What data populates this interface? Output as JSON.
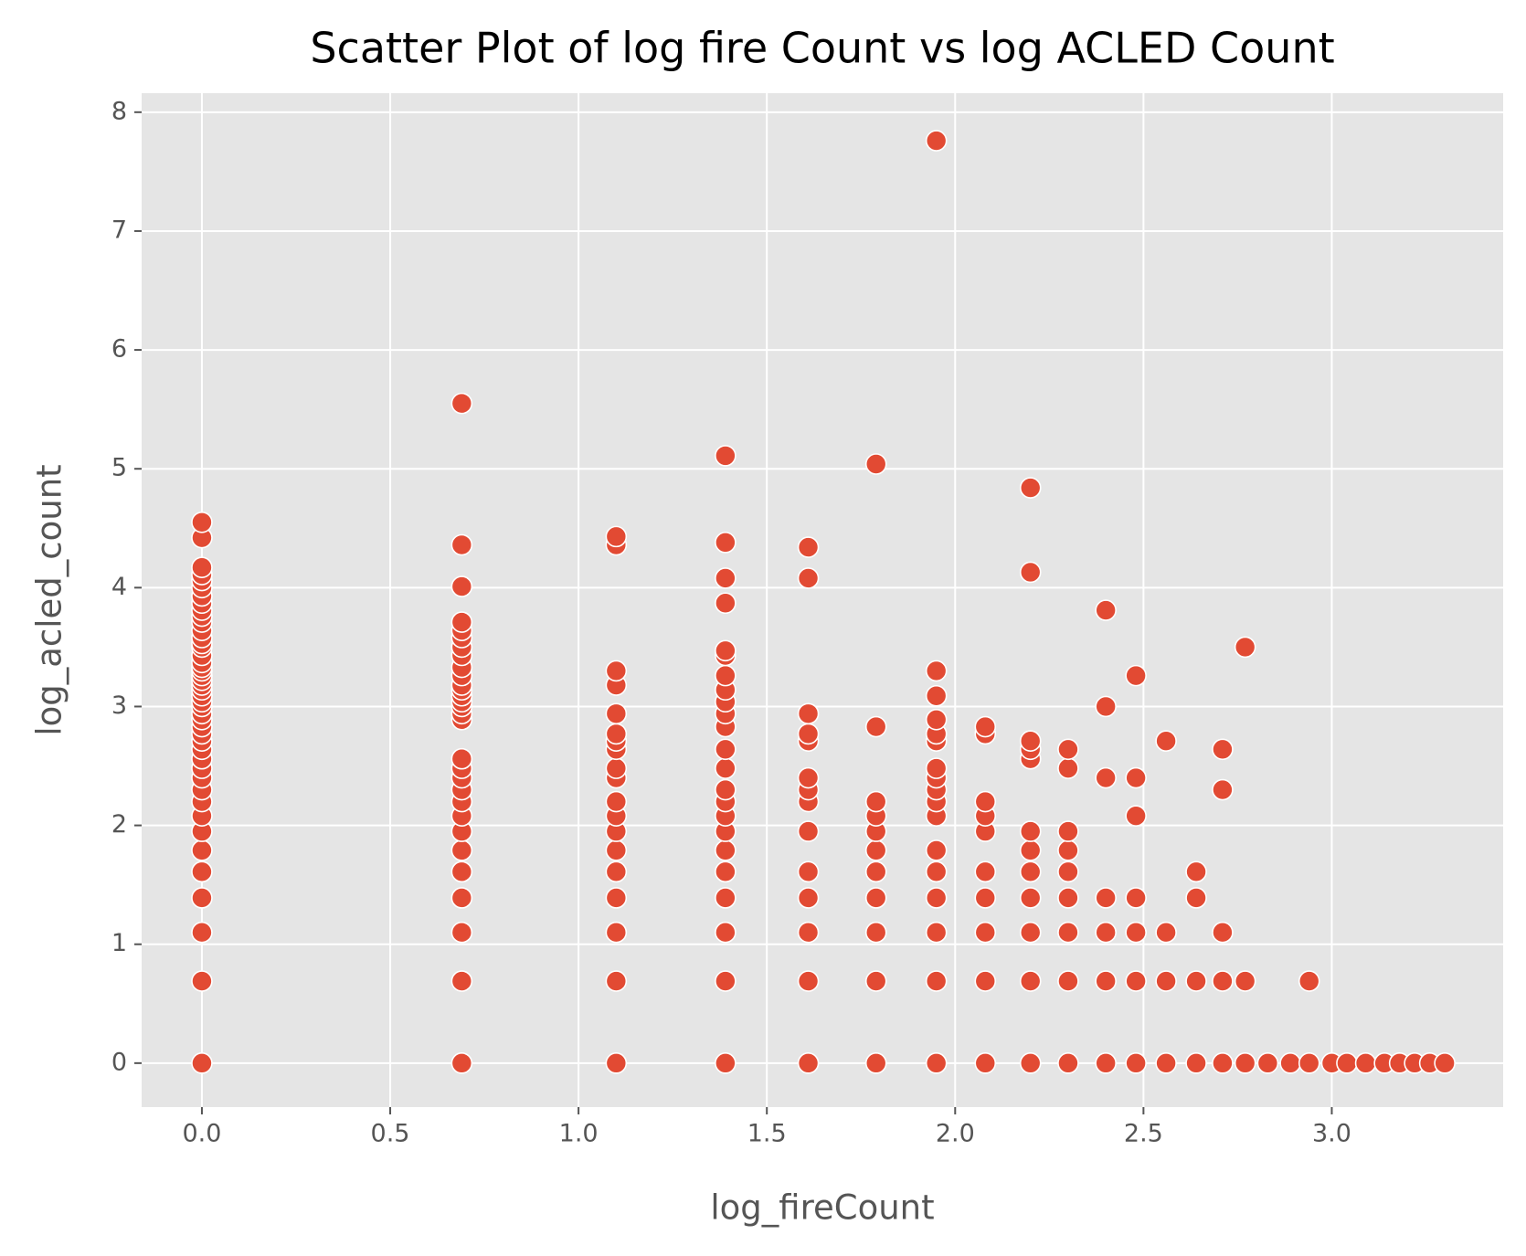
{
  "chart_data": {
    "type": "scatter",
    "title": "Scatter Plot of log fire Count vs log ACLED Count",
    "x_label": "log_fireCount",
    "y_label": "log_acled_count",
    "xlim": [
      -0.16,
      3.455
    ],
    "ylim": [
      -0.37,
      8.16
    ],
    "xticks": [
      {
        "value": 0,
        "label": "0.0"
      },
      0.5,
      {
        "value": 1,
        "label": "1.0"
      },
      1.5,
      {
        "value": 2,
        "label": "2.0"
      },
      2.5,
      {
        "value": 3,
        "label": "3.0"
      }
    ],
    "yticks": [
      0,
      1,
      2,
      3,
      4,
      5,
      6,
      7,
      8
    ],
    "grid": true,
    "background": "#e5e5e5",
    "series": [
      {
        "color": "#e24a33",
        "x": [
          0,
          0,
          0,
          0,
          0,
          0,
          0,
          0,
          0,
          0,
          0,
          0,
          0,
          0,
          0,
          0,
          0,
          0,
          0,
          0,
          0,
          0,
          0,
          0,
          0,
          0,
          0,
          0,
          0,
          0,
          0,
          0,
          0,
          0,
          0,
          0,
          0,
          0,
          0,
          0,
          0,
          0,
          0,
          0,
          0,
          0.69,
          0.69,
          0.69,
          0.69,
          0.69,
          0.69,
          0.69,
          0.69,
          0.69,
          0.69,
          0.69,
          0.69,
          0.69,
          0.69,
          0.69,
          0.69,
          0.69,
          0.69,
          0.69,
          0.69,
          0.69,
          0.69,
          0.69,
          0.69,
          0.69,
          0.69,
          0.69,
          0.69,
          0.69,
          0.69,
          1.1,
          1.1,
          1.1,
          1.1,
          1.1,
          1.1,
          1.1,
          1.1,
          1.1,
          1.1,
          1.1,
          1.1,
          1.1,
          1.1,
          1.1,
          1.1,
          1.1,
          1.1,
          1.1,
          1.39,
          1.39,
          1.39,
          1.39,
          1.39,
          1.39,
          1.39,
          1.39,
          1.39,
          1.39,
          1.39,
          1.39,
          1.39,
          1.39,
          1.39,
          1.39,
          1.39,
          1.39,
          1.39,
          1.39,
          1.39,
          1.39,
          1.39,
          1.61,
          1.61,
          1.61,
          1.61,
          1.61,
          1.61,
          1.61,
          1.61,
          1.61,
          1.61,
          1.61,
          1.61,
          1.61,
          1.61,
          1.79,
          1.79,
          1.79,
          1.79,
          1.79,
          1.79,
          1.79,
          1.79,
          1.79,
          1.79,
          1.79,
          1.95,
          1.95,
          1.95,
          1.95,
          1.95,
          1.95,
          1.95,
          1.95,
          1.95,
          1.95,
          1.95,
          1.95,
          1.95,
          1.95,
          1.95,
          1.95,
          1.95,
          2.08,
          2.08,
          2.08,
          2.08,
          2.08,
          2.08,
          2.08,
          2.08,
          2.08,
          2.08,
          2.2,
          2.2,
          2.2,
          2.2,
          2.2,
          2.2,
          2.2,
          2.2,
          2.2,
          2.2,
          2.2,
          2.2,
          2.3,
          2.3,
          2.3,
          2.3,
          2.3,
          2.3,
          2.3,
          2.3,
          2.3,
          2.4,
          2.4,
          2.4,
          2.4,
          2.4,
          2.4,
          2.4,
          2.48,
          2.48,
          2.48,
          2.48,
          2.48,
          2.48,
          2.48,
          2.56,
          2.56,
          2.56,
          2.56,
          2.64,
          2.64,
          2.64,
          2.64,
          2.71,
          2.71,
          2.71,
          2.71,
          2.71,
          2.77,
          2.77,
          2.77,
          2.83,
          2.89,
          2.94,
          2.94,
          3.0,
          3.04,
          3.09,
          3.14,
          3.18,
          3.22,
          3.26,
          3.3
        ],
        "y": [
          0,
          0.69,
          1.1,
          1.39,
          1.61,
          1.79,
          1.95,
          2.08,
          2.2,
          2.3,
          2.4,
          2.48,
          2.56,
          2.64,
          2.71,
          2.77,
          2.83,
          2.89,
          2.94,
          3.0,
          3.04,
          3.09,
          3.14,
          3.18,
          3.22,
          3.26,
          3.3,
          3.33,
          3.37,
          3.43,
          3.5,
          3.53,
          3.58,
          3.64,
          3.71,
          3.76,
          3.81,
          3.87,
          3.93,
          4.0,
          4.06,
          4.11,
          4.17,
          4.42,
          4.55,
          0,
          0.69,
          1.1,
          1.39,
          1.61,
          1.79,
          1.95,
          2.08,
          2.2,
          2.3,
          2.4,
          2.48,
          2.56,
          2.89,
          2.94,
          3.0,
          3.04,
          3.09,
          3.14,
          3.18,
          3.26,
          3.33,
          3.43,
          3.5,
          3.58,
          3.64,
          3.71,
          4.01,
          4.36,
          5.55,
          0,
          0.69,
          1.1,
          1.39,
          1.61,
          1.79,
          1.95,
          2.08,
          2.2,
          2.4,
          2.48,
          2.64,
          2.71,
          2.77,
          2.94,
          3.18,
          3.3,
          4.36,
          4.43,
          0,
          0.69,
          1.1,
          1.39,
          1.61,
          1.79,
          1.95,
          2.08,
          2.2,
          2.3,
          2.48,
          2.64,
          2.83,
          2.94,
          3.04,
          3.14,
          3.26,
          3.43,
          3.47,
          3.87,
          4.08,
          4.38,
          5.11,
          0,
          0.69,
          1.1,
          1.39,
          1.61,
          1.95,
          2.2,
          2.3,
          2.4,
          2.71,
          2.77,
          2.94,
          4.08,
          4.34,
          0,
          0.69,
          1.1,
          1.39,
          1.61,
          1.79,
          1.95,
          2.08,
          2.2,
          2.83,
          5.04,
          0,
          0.69,
          1.1,
          1.39,
          1.61,
          1.79,
          2.08,
          2.2,
          2.3,
          2.4,
          2.48,
          2.71,
          2.77,
          2.89,
          3.09,
          3.3,
          7.76,
          0,
          0.69,
          1.1,
          1.39,
          1.61,
          1.95,
          2.08,
          2.2,
          2.77,
          2.83,
          0,
          0.69,
          1.1,
          1.39,
          1.61,
          1.79,
          1.95,
          2.56,
          2.64,
          2.71,
          4.13,
          4.84,
          0,
          0.69,
          1.1,
          1.39,
          1.61,
          1.79,
          1.95,
          2.48,
          2.64,
          0,
          0.69,
          1.1,
          1.39,
          2.4,
          3.0,
          3.81,
          0,
          0.69,
          1.1,
          1.39,
          2.08,
          2.4,
          3.26,
          0,
          0.69,
          1.1,
          2.71,
          0,
          0.69,
          1.39,
          1.61,
          0,
          0.69,
          1.1,
          2.3,
          2.64,
          0,
          0.69,
          3.5,
          0,
          0,
          0,
          0.69,
          0,
          0,
          0,
          0,
          0,
          0,
          0,
          0
        ]
      }
    ]
  }
}
